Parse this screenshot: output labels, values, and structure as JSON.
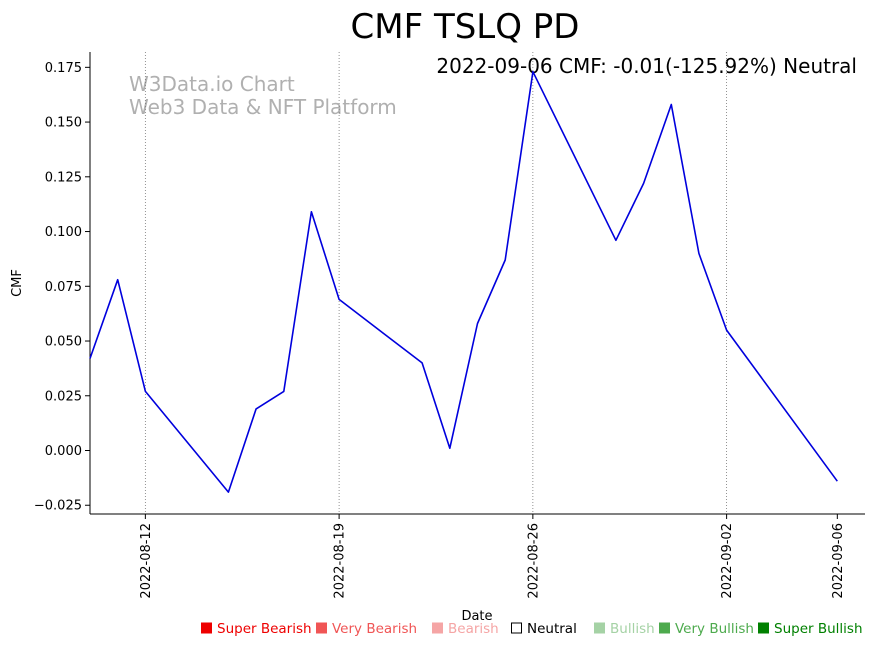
{
  "chart_data": {
    "type": "line",
    "title": "CMF TSLQ PD",
    "info_text": "2022-09-06 CMF: -0.01(-125.92%) Neutral",
    "watermark": [
      "W3Data.io Chart",
      "Web3 Data & NFT Platform"
    ],
    "xlabel": "Date",
    "ylabel": "CMF",
    "ylim": [
      -0.029,
      0.182
    ],
    "xlim_days": [
      0,
      28
    ],
    "y_ticks": [
      -0.025,
      0.0,
      0.025,
      0.05,
      0.075,
      0.1,
      0.125,
      0.15,
      0.175
    ],
    "y_tick_labels": [
      "−0.025",
      "0.000",
      "0.025",
      "0.050",
      "0.075",
      "0.100",
      "0.125",
      "0.150",
      "0.175"
    ],
    "x_ticks": [
      {
        "day": 2,
        "label": "2022-08-12"
      },
      {
        "day": 9,
        "label": "2022-08-19"
      },
      {
        "day": 16,
        "label": "2022-08-26"
      },
      {
        "day": 23,
        "label": "2022-09-02"
      },
      {
        "day": 27,
        "label": "2022-09-06"
      }
    ],
    "vlines_days": [
      2,
      9,
      16,
      23
    ],
    "series": [
      {
        "name": "CMF",
        "color": "#0000dd",
        "days": [
          0,
          1,
          2,
          5,
          6,
          7,
          8,
          9,
          12,
          13,
          14,
          15,
          16,
          19,
          20,
          21,
          22,
          23,
          27
        ],
        "values": [
          0.042,
          0.078,
          0.027,
          -0.019,
          0.019,
          0.027,
          0.109,
          0.069,
          0.04,
          0.001,
          0.058,
          0.087,
          0.173,
          0.096,
          0.122,
          0.158,
          0.09,
          0.055,
          -0.014
        ]
      }
    ],
    "legend": [
      {
        "label": "Super Bearish",
        "color": "#ee0000",
        "filled": true
      },
      {
        "label": "Very Bearish",
        "color": "#f05555",
        "filled": true
      },
      {
        "label": "Bearish",
        "color": "#f5a5a5",
        "filled": true
      },
      {
        "label": "Neutral",
        "color": "#000000",
        "filled": false
      },
      {
        "label": "Bullish",
        "color": "#a5d2a5",
        "filled": true
      },
      {
        "label": "Very Bullish",
        "color": "#4daa4d",
        "filled": true
      },
      {
        "label": "Super Bullish",
        "color": "#008000",
        "filled": true
      }
    ]
  }
}
